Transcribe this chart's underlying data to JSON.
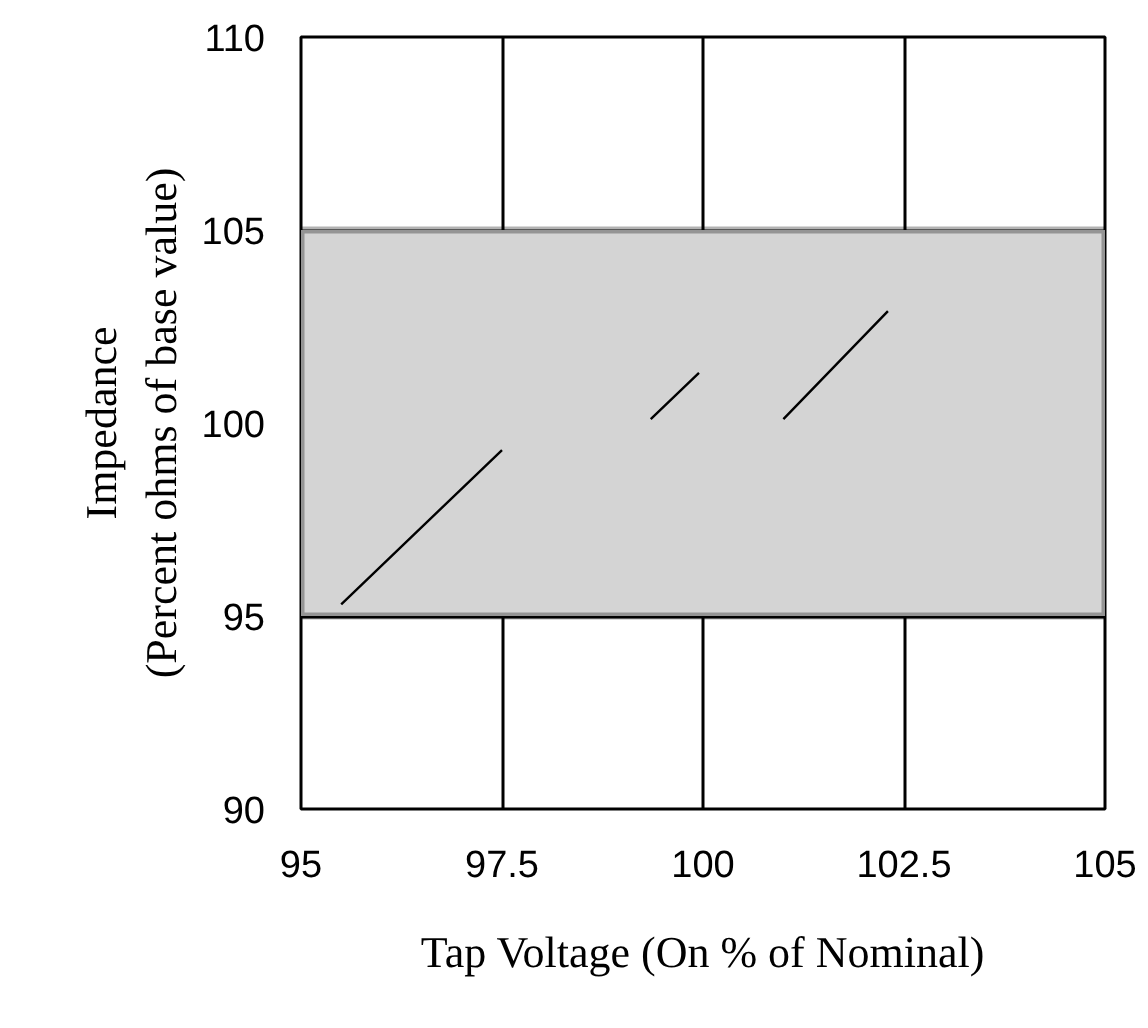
{
  "chart_data": {
    "type": "line",
    "xlabel": "Tap Voltage (On % of Nominal)",
    "ylabel": "Impedance\n(Percent ohms of base value)",
    "x": [
      95.5,
      97.5,
      null,
      99.35,
      99.95,
      null,
      101.0,
      102.3
    ],
    "series": [
      {
        "color": "#000000",
        "values": [
          95.3,
          99.3,
          null,
          100.1,
          101.3,
          null,
          100.1,
          102.9
        ]
      }
    ],
    "xlim": [
      95,
      105
    ],
    "ylim": [
      90,
      110
    ],
    "xticks": [
      95,
      97.5,
      100,
      102.5,
      105
    ],
    "yticks": [
      90,
      95,
      100,
      105,
      110
    ],
    "bands": [
      {
        "axis": "y",
        "from": 95,
        "to": 105,
        "color": "#d4d4d4"
      }
    ],
    "grid": true,
    "marker": "none",
    "line_style": "solid"
  }
}
